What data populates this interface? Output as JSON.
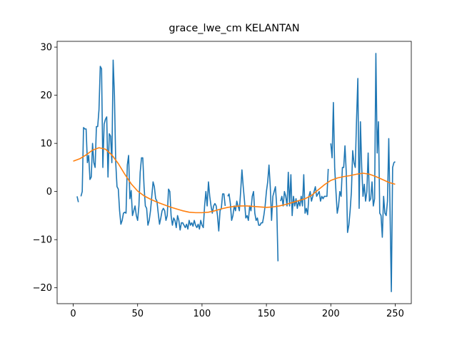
{
  "chart_data": {
    "type": "line",
    "title": "grace_lwe_cm KELANTAN",
    "x": [
      0,
      1,
      2,
      3,
      4,
      5,
      6,
      7,
      8,
      9,
      10,
      11,
      12,
      13,
      14,
      15,
      16,
      17,
      18,
      19,
      20,
      21,
      22,
      23,
      24,
      25,
      26,
      27,
      28,
      29,
      30,
      31,
      32,
      33,
      34,
      35,
      36,
      37,
      38,
      39,
      40,
      41,
      42,
      43,
      44,
      45,
      46,
      47,
      48,
      49,
      50,
      51,
      52,
      53,
      54,
      55,
      56,
      57,
      58,
      59,
      60,
      61,
      62,
      63,
      64,
      65,
      66,
      67,
      68,
      69,
      70,
      71,
      72,
      73,
      74,
      75,
      76,
      77,
      78,
      79,
      80,
      81,
      82,
      83,
      84,
      85,
      86,
      87,
      88,
      89,
      90,
      91,
      92,
      93,
      94,
      95,
      96,
      97,
      98,
      99,
      100,
      101,
      102,
      103,
      104,
      105,
      106,
      107,
      108,
      109,
      110,
      111,
      112,
      113,
      114,
      115,
      116,
      117,
      118,
      119,
      120,
      121,
      122,
      123,
      124,
      125,
      126,
      127,
      128,
      129,
      130,
      131,
      132,
      133,
      134,
      135,
      136,
      137,
      138,
      139,
      140,
      141,
      142,
      143,
      144,
      145,
      146,
      147,
      148,
      149,
      150,
      151,
      152,
      153,
      154,
      155,
      156,
      157,
      158,
      159,
      160,
      161,
      162,
      163,
      164,
      165,
      166,
      167,
      168,
      169,
      170,
      171,
      172,
      173,
      174,
      175,
      176,
      177,
      178,
      179,
      180,
      181,
      182,
      183,
      184,
      185,
      186,
      187,
      188,
      189,
      190,
      191,
      192,
      193,
      194,
      195,
      196,
      197,
      198,
      199,
      200,
      201,
      202,
      203,
      204,
      205,
      206,
      207,
      208,
      209,
      210,
      211,
      212,
      213,
      214,
      215,
      216,
      217,
      218,
      219,
      220,
      221,
      222,
      223,
      224,
      225,
      226,
      227,
      228,
      229,
      230,
      231,
      232,
      233,
      234,
      235,
      236,
      237,
      238,
      239,
      240,
      241,
      242,
      243,
      244,
      245,
      246,
      247,
      248,
      249,
      250
    ],
    "series": [
      {
        "color": "#1f77b4",
        "values": [
          null,
          null,
          null,
          -1,
          -2.2,
          null,
          -1,
          0,
          13.3,
          13,
          13,
          6,
          7.5,
          2.5,
          3,
          10,
          6,
          5,
          13.5,
          13.5,
          17,
          26,
          25.5,
          5,
          14,
          15,
          15.5,
          3,
          12,
          11.5,
          6,
          27.3,
          20,
          6,
          1,
          0.5,
          -4,
          -6.8,
          -6,
          -4.5,
          -4.3,
          -4.5,
          5.5,
          7.5,
          -1.5,
          0.2,
          -5,
          -4,
          -3,
          -5,
          -6,
          -3,
          4,
          7,
          7,
          1,
          -3,
          -3.5,
          -7,
          -6,
          -4,
          -1,
          2,
          1,
          -1.5,
          -2,
          -4.5,
          -6.8,
          -5.5,
          -4,
          -3.5,
          -4,
          -6,
          -5,
          0.5,
          0,
          -5,
          -7,
          -5.5,
          -6,
          -7.5,
          -5,
          -6,
          -8,
          -6.5,
          -6.5,
          -7,
          -7.5,
          -6.8,
          -7.8,
          -6,
          -7,
          -6.5,
          -7.2,
          -6,
          -7,
          -7.5,
          -6.8,
          -7.8,
          -6,
          -7,
          -7.5,
          -3,
          0,
          -3,
          2,
          -1,
          -3,
          -4.5,
          -3,
          -2.5,
          -3,
          -5,
          -8.2,
          -4,
          -3.5,
          -0.5,
          -0.5,
          -3,
          null,
          -1,
          -0.5,
          -2.5,
          -6,
          -5,
          -3,
          -4,
          -2,
          -3,
          -4,
          0,
          4.5,
          1,
          -2,
          -5.5,
          -5,
          -6,
          -3,
          -4,
          -1,
          0,
          -4.5,
          -6,
          -5.5,
          -7,
          -7,
          -6.5,
          -6.5,
          -5,
          -3,
          0,
          2,
          5.5,
          1,
          -6,
          -1,
          0,
          1,
          -3,
          -14.5,
          null,
          -2,
          -1,
          -3,
          0,
          -1,
          -3,
          4,
          -3,
          3.5,
          -5,
          -1,
          -3,
          -1.5,
          -3.5,
          -2,
          -3,
          -1,
          -3,
          3.5,
          -4.5,
          -3.5,
          -4.8,
          -1,
          0,
          -2,
          -1,
          0,
          1,
          -1,
          -0.5,
          0,
          -2,
          -1,
          -1.5,
          -1,
          -1,
          -1,
          4.7,
          null,
          10,
          7,
          18.5,
          5,
          0,
          -4.5,
          -3,
          0,
          -1,
          5,
          5,
          9.5,
          4,
          -8.5,
          -7,
          -4,
          0,
          8.5,
          6,
          5,
          15,
          23.5,
          -3.5,
          14.5,
          5,
          -1,
          1.5,
          -2,
          0,
          8,
          -2,
          -1.5,
          2,
          -3,
          -1.5,
          28.7,
          8,
          14.5,
          -4.5,
          -5,
          -9.5,
          -1,
          -4.5,
          -5,
          -2,
          11,
          -4,
          -20.8,
          5,
          6,
          6.2
        ]
      },
      {
        "color": "#ff7f0e",
        "x": [
          0,
          5,
          10,
          15,
          20,
          25,
          30,
          35,
          40,
          45,
          50,
          55,
          60,
          65,
          70,
          75,
          80,
          85,
          90,
          95,
          100,
          105,
          110,
          115,
          120,
          125,
          130,
          135,
          140,
          145,
          150,
          155,
          160,
          165,
          170,
          175,
          180,
          185,
          190,
          195,
          200,
          205,
          210,
          215,
          220,
          225,
          230,
          235,
          240,
          245,
          250
        ],
        "values": [
          6.3,
          6.8,
          7.6,
          8.6,
          9.1,
          8.8,
          7.6,
          5.8,
          3.6,
          1.6,
          0.1,
          -0.9,
          -1.6,
          -2.2,
          -2.7,
          -3.2,
          -3.6,
          -4.0,
          -4.3,
          -4.4,
          -4.4,
          -4.3,
          -4.0,
          -3.6,
          -3.3,
          -3.1,
          -3.0,
          -3.0,
          -3.1,
          -3.2,
          -3.3,
          -3.2,
          -3.0,
          -2.7,
          -2.3,
          -1.9,
          -1.5,
          -0.8,
          0.3,
          1.4,
          2.3,
          2.8,
          3.1,
          3.3,
          3.6,
          3.8,
          3.6,
          3.1,
          2.5,
          1.9,
          1.5
        ]
      }
    ],
    "xlim": [
      -12.5,
      262.5
    ],
    "ylim": [
      -23.3,
      31.2
    ],
    "xticks": [
      0,
      50,
      100,
      150,
      200,
      250
    ],
    "yticks": [
      {
        "value": -20,
        "label": "−20"
      },
      {
        "value": -10,
        "label": "−10"
      },
      0,
      10,
      20,
      30
    ]
  }
}
